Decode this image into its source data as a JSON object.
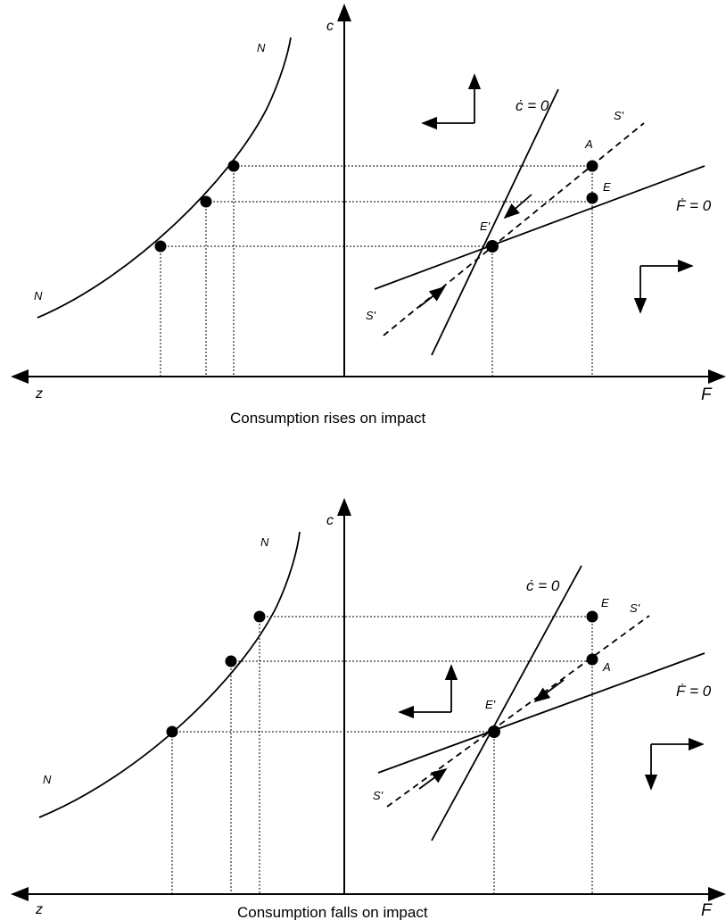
{
  "panels": [
    {
      "caption": "Consumption rises on impact",
      "axis_c": "c",
      "axis_z": "z",
      "axis_F": "F",
      "curve_N_upper": "N",
      "curve_N_lower": "N",
      "cdot_label": "ċ = 0",
      "fdot_label": "Ḟ = 0",
      "S_upper": "S'",
      "S_lower": "S'",
      "point_A": "A",
      "point_E": "E",
      "point_Eprime": "E'"
    },
    {
      "caption": "Consumption falls on impact",
      "axis_c": "c",
      "axis_z": "z",
      "axis_F": "F",
      "curve_N_upper": "N",
      "curve_N_lower": "N",
      "cdot_label": "ċ = 0",
      "fdot_label": "Ḟ = 0",
      "S_upper": "S'",
      "S_lower": "S'",
      "point_A": "A",
      "point_E": "E",
      "point_Eprime": "E'"
    }
  ]
}
